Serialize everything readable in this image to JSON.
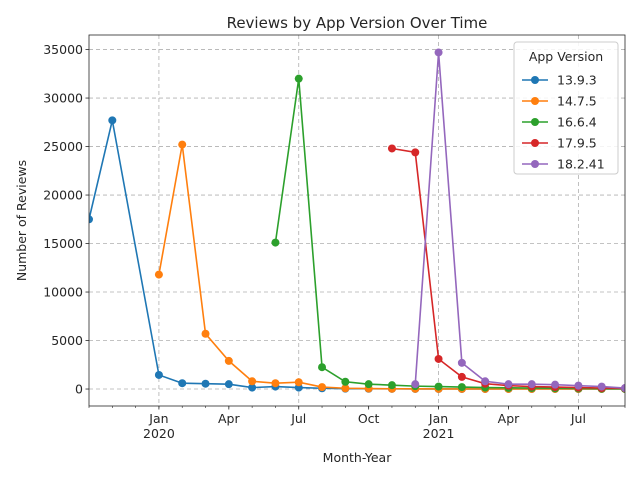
{
  "chart_data": {
    "type": "line",
    "title": "Reviews by App Version Over Time",
    "xlabel": "Month-Year",
    "ylabel": "Number of Reviews",
    "ylim": [
      -1750,
      36500
    ],
    "yticks": [
      0,
      5000,
      10000,
      15000,
      20000,
      25000,
      30000,
      35000
    ],
    "ytick_labels": [
      "0",
      "5000",
      "10000",
      "15000",
      "20000",
      "25000",
      "30000",
      "35000"
    ],
    "xlim": [
      "2019-10",
      "2021-09"
    ],
    "xticks": [
      {
        "month": "2020-01",
        "label": "Jan",
        "label2": "2020",
        "grid": true
      },
      {
        "month": "2020-04",
        "label": "Apr",
        "label2": "",
        "grid": false
      },
      {
        "month": "2020-07",
        "label": "Jul",
        "label2": "",
        "grid": true
      },
      {
        "month": "2020-10",
        "label": "Oct",
        "label2": "",
        "grid": false
      },
      {
        "month": "2021-01",
        "label": "Jan",
        "label2": "2021",
        "grid": true
      },
      {
        "month": "2021-04",
        "label": "Apr",
        "label2": "",
        "grid": false
      },
      {
        "month": "2021-07",
        "label": "Jul",
        "label2": "",
        "grid": true
      }
    ],
    "grid": true,
    "legend": {
      "title": "App Version",
      "placement": "upper-right"
    },
    "series": [
      {
        "name": "13.9.3",
        "color": "#1f77b4",
        "points": [
          [
            "2019-10",
            17500
          ],
          [
            "2019-11",
            27700
          ],
          [
            "2020-01",
            1450
          ],
          [
            "2020-02",
            600
          ],
          [
            "2020-03",
            550
          ],
          [
            "2020-04",
            500
          ],
          [
            "2020-05",
            150
          ],
          [
            "2020-06",
            250
          ],
          [
            "2020-07",
            150
          ],
          [
            "2020-08",
            80
          ],
          [
            "2020-09",
            40
          ],
          [
            "2020-10",
            30
          ],
          [
            "2020-11",
            20
          ],
          [
            "2020-12",
            10
          ],
          [
            "2021-01",
            10
          ],
          [
            "2021-02",
            5
          ],
          [
            "2021-03",
            5
          ],
          [
            "2021-04",
            5
          ],
          [
            "2021-05",
            5
          ],
          [
            "2021-06",
            5
          ],
          [
            "2021-07",
            5
          ],
          [
            "2021-08",
            5
          ],
          [
            "2021-09",
            5
          ]
        ]
      },
      {
        "name": "14.7.5",
        "color": "#ff7f0e",
        "points": [
          [
            "2020-01",
            11800
          ],
          [
            "2020-02",
            25200
          ],
          [
            "2020-03",
            5700
          ],
          [
            "2020-04",
            2900
          ],
          [
            "2020-05",
            800
          ],
          [
            "2020-06",
            600
          ],
          [
            "2020-07",
            700
          ],
          [
            "2020-08",
            200
          ],
          [
            "2020-09",
            80
          ],
          [
            "2020-10",
            50
          ],
          [
            "2020-11",
            30
          ],
          [
            "2020-12",
            20
          ],
          [
            "2021-01",
            10
          ],
          [
            "2021-02",
            10
          ],
          [
            "2021-03",
            5
          ],
          [
            "2021-04",
            5
          ],
          [
            "2021-05",
            5
          ],
          [
            "2021-06",
            5
          ],
          [
            "2021-07",
            5
          ],
          [
            "2021-08",
            5
          ],
          [
            "2021-09",
            5
          ]
        ]
      },
      {
        "name": "16.6.4",
        "color": "#2ca02c",
        "points": [
          [
            "2020-06",
            15100
          ],
          [
            "2020-07",
            32000
          ],
          [
            "2020-08",
            2250
          ],
          [
            "2020-09",
            750
          ],
          [
            "2020-10",
            500
          ],
          [
            "2020-11",
            400
          ],
          [
            "2020-12",
            300
          ],
          [
            "2021-01",
            250
          ],
          [
            "2021-02",
            200
          ],
          [
            "2021-03",
            150
          ],
          [
            "2021-04",
            120
          ],
          [
            "2021-05",
            100
          ],
          [
            "2021-06",
            80
          ],
          [
            "2021-07",
            60
          ],
          [
            "2021-08",
            40
          ],
          [
            "2021-09",
            30
          ]
        ]
      },
      {
        "name": "17.9.5",
        "color": "#d62728",
        "points": [
          [
            "2020-11",
            24800
          ],
          [
            "2020-12",
            24400
          ],
          [
            "2021-01",
            3100
          ],
          [
            "2021-02",
            1250
          ],
          [
            "2021-03",
            550
          ],
          [
            "2021-04",
            350
          ],
          [
            "2021-05",
            250
          ],
          [
            "2021-06",
            200
          ],
          [
            "2021-07",
            150
          ],
          [
            "2021-08",
            100
          ],
          [
            "2021-09",
            80
          ]
        ]
      },
      {
        "name": "18.2.41",
        "color": "#9467bd",
        "points": [
          [
            "2020-12",
            500
          ],
          [
            "2021-01",
            34700
          ],
          [
            "2021-02",
            2700
          ],
          [
            "2021-03",
            800
          ],
          [
            "2021-04",
            500
          ],
          [
            "2021-05",
            500
          ],
          [
            "2021-06",
            450
          ],
          [
            "2021-07",
            350
          ],
          [
            "2021-08",
            250
          ],
          [
            "2021-09",
            100
          ]
        ]
      }
    ]
  }
}
